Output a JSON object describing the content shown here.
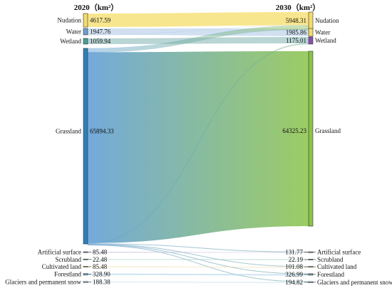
{
  "chart_data": {
    "type": "sankey",
    "left_title": "2020（km²）",
    "right_title": "2030（km²）",
    "left_nodes": [
      {
        "name": "Nudation",
        "value": 4617.59,
        "label": "4617.59",
        "color": "#f5dc6a"
      },
      {
        "name": "Water",
        "value": 1947.76,
        "label": "1947.76",
        "color": "#6f9fd0"
      },
      {
        "name": "Wetland",
        "value": 1059.94,
        "label": "1059.94",
        "color": "#4a9e9a"
      },
      {
        "name": "Grassland",
        "value": 65894.33,
        "label": "65894.33",
        "color": "#2f7fba"
      },
      {
        "name": "Artificial surface",
        "value": 85.48,
        "label": "85.48",
        "color": "#8a7fb8"
      },
      {
        "name": "Scrubland",
        "value": 22.48,
        "label": "22.48",
        "color": "#5fb0a0"
      },
      {
        "name": "Cultivated land",
        "value": 85.48,
        "label": "85.48",
        "color": "#e8c46a"
      },
      {
        "name": "Forestland",
        "value": 328.9,
        "label": "328.90",
        "color": "#6ab0d8"
      },
      {
        "name": "Glaciers and permanent snow",
        "value": 188.38,
        "label": "188.38",
        "color": "#9fc7e8"
      }
    ],
    "right_nodes": [
      {
        "name": "Nudation",
        "value": 5948.31,
        "label": "5948.31",
        "color": "#f5dc6a"
      },
      {
        "name": "Water",
        "value": 1985.86,
        "label": "1985.86",
        "color": "#f5dc6a"
      },
      {
        "name": "Wetland",
        "value": 1175.01,
        "label": "1175.01",
        "color": "#8a4fb0"
      },
      {
        "name": "Grassland",
        "value": 64325.23,
        "label": "64325.23",
        "color": "#8bc34a"
      },
      {
        "name": "Artificial surface",
        "value": 131.77,
        "label": "131.77",
        "color": "#9aa0a6"
      },
      {
        "name": "Scrubland",
        "value": 22.19,
        "label": "22.19",
        "color": "#7fb069"
      },
      {
        "name": "Cultivated land",
        "value": 101.08,
        "label": "101.08",
        "color": "#9fb86a"
      },
      {
        "name": "Forestland",
        "value": 326.99,
        "label": "326.99",
        "color": "#6a9fb8"
      },
      {
        "name": "Glaciers and permanent snow",
        "value": 194.82,
        "label": "194.82",
        "color": "#9fc7e8"
      }
    ],
    "flows": [
      {
        "from": "Nudation",
        "to": "Nudation",
        "value": 4617.59
      },
      {
        "from": "Water",
        "to": "Water",
        "value": 1947.76
      },
      {
        "from": "Water",
        "to": "Nudation",
        "value": 38.1
      },
      {
        "from": "Wetland",
        "to": "Wetland",
        "value": 1059.94
      },
      {
        "from": "Grassland",
        "to": "Nudation",
        "value": 1292.62
      },
      {
        "from": "Grassland",
        "to": "Grassland",
        "value": 64325.23
      },
      {
        "from": "Grassland",
        "to": "Wetland",
        "value": 115.07
      },
      {
        "from": "Grassland",
        "to": "Artificial surface",
        "value": 46.29
      },
      {
        "from": "Grassland",
        "to": "Cultivated land",
        "value": 15.6
      },
      {
        "from": "Grassland",
        "to": "Forestland",
        "value": 10.0
      },
      {
        "from": "Grassland",
        "to": "Glaciers and permanent snow",
        "value": 6.44
      },
      {
        "from": "Artificial surface",
        "to": "Artificial surface",
        "value": 85.48
      },
      {
        "from": "Scrubland",
        "to": "Scrubland",
        "value": 22.19
      },
      {
        "from": "Cultivated land",
        "to": "Cultivated land",
        "value": 85.48
      },
      {
        "from": "Forestland",
        "to": "Forestland",
        "value": 316.99
      },
      {
        "from": "Glaciers and permanent snow",
        "to": "Glaciers and permanent snow",
        "value": 188.38
      }
    ]
  }
}
